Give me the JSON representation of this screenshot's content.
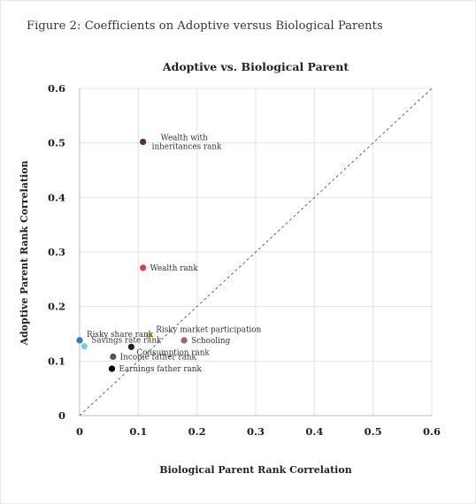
{
  "figure_caption": "Figure 2: Coefficients on Adoptive versus Biological Parents",
  "chart_data": {
    "type": "scatter",
    "title": "Adoptive vs. Biological Parent",
    "xlabel": "Biological Parent Rank Correlation",
    "ylabel": "Adoptive Parent Rank Correlation",
    "xlim": [
      0,
      0.6
    ],
    "ylim": [
      0,
      0.6
    ],
    "x_ticks": [
      "0",
      "0.1",
      "0.2",
      "0.3",
      "0.4",
      "0.5",
      "0.6"
    ],
    "y_ticks": [
      "0",
      "0.1",
      "0.2",
      "0.3",
      "0.4",
      "0.5",
      "0.6"
    ],
    "grid": true,
    "reference_line": "45-degree dashed",
    "points": [
      {
        "label": "Wealth with inheritances rank",
        "label_lines": [
          "Wealth with",
          "inheritances rank"
        ],
        "x": 0.108,
        "y": 0.502,
        "color": "#5b2a4f",
        "anchor": "start-up"
      },
      {
        "label": "Wealth rank",
        "label_lines": [
          "Wealth rank"
        ],
        "x": 0.108,
        "y": 0.271,
        "color": "#d9414a",
        "anchor": "right"
      },
      {
        "label": "Risky market participation",
        "label_lines": [
          "Risky market participation"
        ],
        "x": 0.118,
        "y": 0.147,
        "color": "#f3c53b",
        "anchor": "right-up"
      },
      {
        "label": "Risky share rank",
        "label_lines": [
          "Risky share rank"
        ],
        "x": 0.0,
        "y": 0.138,
        "color": "#3c78b5",
        "anchor": "right-up"
      },
      {
        "label": "Savings rate rank",
        "label_lines": [
          "Savings rate rank"
        ],
        "x": 0.008,
        "y": 0.127,
        "color": "#7ccad3",
        "anchor": "right-up"
      },
      {
        "label": "Schooling",
        "label_lines": [
          "Schooling"
        ],
        "x": 0.178,
        "y": 0.138,
        "color": "#a05d78",
        "anchor": "right"
      },
      {
        "label": "Consumption rank",
        "label_lines": [
          "Consumption  rank"
        ],
        "x": 0.088,
        "y": 0.126,
        "color": "#222222",
        "anchor": "right-down"
      },
      {
        "label": "Income father rank",
        "label_lines": [
          "Income father rank"
        ],
        "x": 0.057,
        "y": 0.108,
        "color": "#555555",
        "anchor": "right"
      },
      {
        "label": "Earnings father rank",
        "label_lines": [
          "Earnings father rank"
        ],
        "x": 0.055,
        "y": 0.086,
        "color": "#000000",
        "anchor": "right"
      }
    ]
  }
}
